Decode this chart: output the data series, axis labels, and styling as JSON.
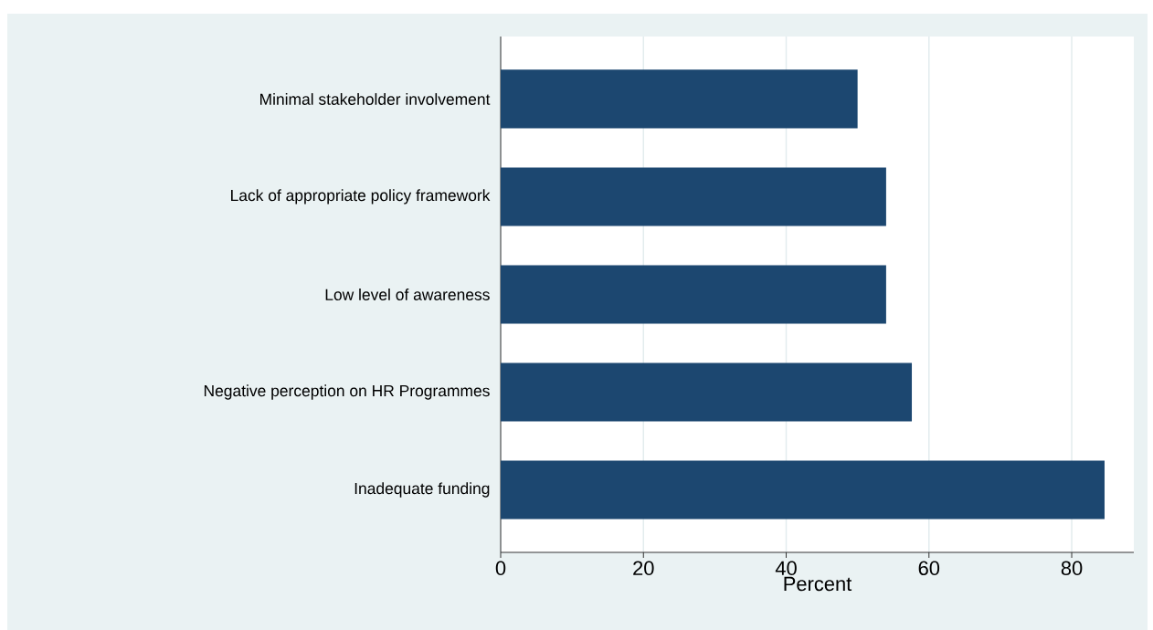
{
  "chart_data": {
    "type": "bar",
    "orientation": "horizontal",
    "categories": [
      "Minimal stakeholder involvement",
      "Lack of appropriate policy framework",
      "Low level of awareness",
      "Negative perception on HR Programmes",
      "Inadequate funding"
    ],
    "values": [
      50,
      54,
      54,
      57.6,
      84.6
    ],
    "color": "#1c4770",
    "xlabel": "Percent",
    "xlim": [
      0,
      88.7
    ],
    "xticks": [
      0,
      20,
      40,
      60,
      80
    ],
    "grid": "x"
  }
}
